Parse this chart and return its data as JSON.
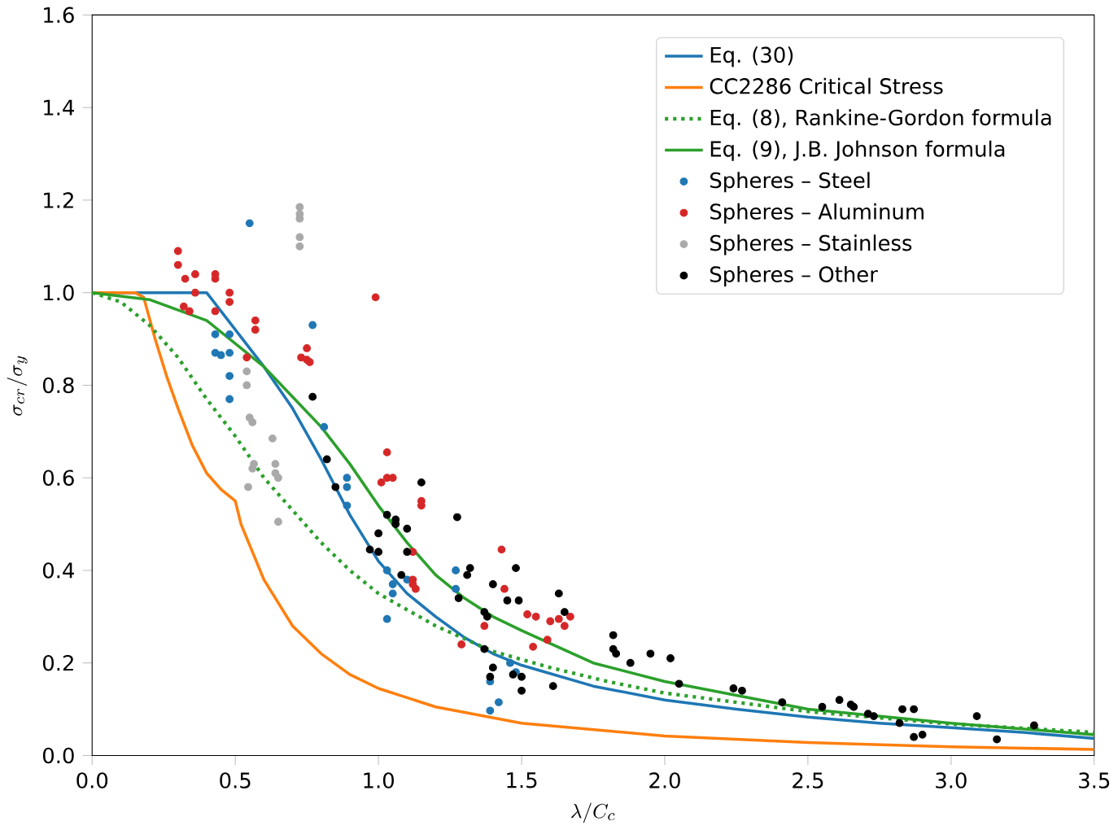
{
  "chart_data": {
    "type": "scatter",
    "xlabel": "\\lambda/C_c",
    "ylabel": "\\sigma_{cr}/\\sigma_y",
    "xlim": [
      0,
      3.5
    ],
    "ylim": [
      0,
      1.6
    ],
    "xticks": [
      {
        "value": 0,
        "label": "0.0"
      },
      {
        "value": 0.5,
        "label": "0.5"
      },
      {
        "value": 1,
        "label": "1.0"
      },
      {
        "value": 1.5,
        "label": "1.5"
      },
      {
        "value": 2,
        "label": "2.0"
      },
      {
        "value": 2.5,
        "label": "2.5"
      },
      {
        "value": 3,
        "label": "3.0"
      },
      {
        "value": 3.5,
        "label": "3.5"
      }
    ],
    "yticks": [
      {
        "value": 0,
        "label": "0.0"
      },
      {
        "value": 0.2,
        "label": "0.2"
      },
      {
        "value": 0.4,
        "label": "0.4"
      },
      {
        "value": 0.6,
        "label": "0.6"
      },
      {
        "value": 0.8,
        "label": "0.8"
      },
      {
        "value": 1,
        "label": "1.0"
      },
      {
        "value": 1.2,
        "label": "1.2"
      },
      {
        "value": 1.4,
        "label": "1.4"
      },
      {
        "value": 1.6,
        "label": "1.6"
      }
    ],
    "grid": false,
    "legend": "top right",
    "series": [
      {
        "name": "Eq. (30)",
        "type": "line",
        "line_style": "solid",
        "marker": "none",
        "color": "#1f77b4",
        "x": [
          0,
          0.4,
          0.5,
          0.6,
          0.7,
          0.8,
          0.9,
          1.0,
          1.1,
          1.2,
          1.3,
          1.4,
          1.5,
          1.75,
          2.0,
          2.25,
          2.5,
          2.75,
          3.0,
          3.25,
          3.5
        ],
        "values": [
          1,
          1,
          0.92,
          0.84,
          0.75,
          0.64,
          0.52,
          0.42,
          0.35,
          0.3,
          0.255,
          0.22,
          0.195,
          0.15,
          0.12,
          0.1,
          0.083,
          0.07,
          0.06,
          0.05,
          0.037
        ]
      },
      {
        "name": "CC2286 Critical Stress",
        "type": "line",
        "line_style": "solid",
        "marker": "none",
        "color": "#ff7f0e",
        "x": [
          0,
          0.15,
          0.18,
          0.22,
          0.26,
          0.3,
          0.35,
          0.4,
          0.45,
          0.5,
          0.52,
          0.6,
          0.7,
          0.8,
          0.9,
          1.0,
          1.2,
          1.5,
          2.0,
          2.5,
          3.0,
          3.5
        ],
        "values": [
          1,
          1,
          0.99,
          0.9,
          0.82,
          0.75,
          0.67,
          0.61,
          0.575,
          0.55,
          0.5,
          0.38,
          0.28,
          0.22,
          0.175,
          0.145,
          0.105,
          0.07,
          0.042,
          0.028,
          0.019,
          0.013
        ]
      },
      {
        "name": "Eq. (8), Rankine-Gordon formula",
        "type": "line",
        "line_style": "dotted",
        "marker": "none",
        "color": "#2ca02c",
        "x": [
          0,
          0.1,
          0.2,
          0.3,
          0.4,
          0.5,
          0.6,
          0.7,
          0.8,
          0.9,
          1.0,
          1.2,
          1.4,
          1.6,
          1.8,
          2.0,
          2.5,
          3.0,
          3.5
        ],
        "values": [
          1,
          0.98,
          0.93,
          0.86,
          0.77,
          0.69,
          0.6,
          0.53,
          0.46,
          0.4,
          0.35,
          0.28,
          0.225,
          0.19,
          0.16,
          0.135,
          0.095,
          0.068,
          0.05
        ]
      },
      {
        "name": "Eq. (9), J.B. Johnson formula",
        "type": "line",
        "line_style": "solid",
        "marker": "none",
        "color": "#2ca02c",
        "x": [
          0,
          0.2,
          0.4,
          0.6,
          0.8,
          0.9,
          1.0,
          1.1,
          1.2,
          1.3,
          1.4,
          1.5,
          1.75,
          2.0,
          2.5,
          3.0,
          3.5
        ],
        "values": [
          1,
          0.985,
          0.94,
          0.84,
          0.71,
          0.63,
          0.54,
          0.46,
          0.39,
          0.34,
          0.3,
          0.27,
          0.2,
          0.16,
          0.1,
          0.07,
          0.045
        ]
      },
      {
        "name": "Spheres – Steel",
        "marker": "circle",
        "color": "#1f77b4",
        "x": [
          0.55,
          0.77,
          0.43,
          0.48,
          0.43,
          0.45,
          0.48,
          0.48,
          0.48,
          0.81,
          0.89,
          0.89,
          0.89,
          1.03,
          1.05,
          1.05,
          1.03,
          1.1,
          1.27,
          1.27,
          1.39,
          1.42,
          1.39,
          1.46,
          1.48
        ],
        "values": [
          1.15,
          0.93,
          0.91,
          0.91,
          0.87,
          0.865,
          0.87,
          0.82,
          0.77,
          0.71,
          0.6,
          0.58,
          0.54,
          0.4,
          0.37,
          0.35,
          0.295,
          0.38,
          0.4,
          0.36,
          0.16,
          0.115,
          0.097,
          0.2,
          0.18
        ]
      },
      {
        "name": "Spheres – Aluminum",
        "marker": "circle",
        "color": "#d62728",
        "x": [
          0.3,
          0.3,
          0.325,
          0.36,
          0.43,
          0.43,
          0.36,
          0.32,
          0.34,
          0.48,
          0.48,
          0.43,
          0.57,
          0.57,
          0.54,
          0.99,
          0.75,
          0.73,
          0.75,
          0.76,
          1.03,
          1.01,
          1.03,
          1.05,
          1.15,
          1.15,
          1.12,
          1.12,
          1.12,
          1.13,
          1.43,
          1.44,
          1.52,
          1.55,
          1.6,
          1.63,
          1.65,
          1.67,
          1.59,
          1.54,
          1.29,
          1.37
        ],
        "values": [
          1.09,
          1.06,
          1.03,
          1.04,
          1.04,
          1.03,
          1.0,
          0.97,
          0.96,
          1.0,
          0.98,
          0.96,
          0.94,
          0.92,
          0.86,
          0.99,
          0.88,
          0.86,
          0.855,
          0.85,
          0.655,
          0.59,
          0.6,
          0.6,
          0.55,
          0.54,
          0.44,
          0.38,
          0.37,
          0.36,
          0.445,
          0.36,
          0.305,
          0.3,
          0.29,
          0.295,
          0.28,
          0.3,
          0.25,
          0.235,
          0.24,
          0.28
        ]
      },
      {
        "name": "Spheres – Stainless",
        "marker": "circle",
        "color": "#a9a9a9",
        "x": [
          0.725,
          0.725,
          0.725,
          0.725,
          0.725,
          0.54,
          0.54,
          0.55,
          0.56,
          0.63,
          0.565,
          0.56,
          0.64,
          0.64,
          0.65,
          0.545,
          0.65
        ],
        "values": [
          1.185,
          1.17,
          1.16,
          1.12,
          1.1,
          0.83,
          0.8,
          0.73,
          0.72,
          0.685,
          0.63,
          0.62,
          0.63,
          0.61,
          0.6,
          0.58,
          0.505
        ]
      },
      {
        "name": "Spheres – Other",
        "marker": "circle",
        "color": "#000000",
        "x": [
          0.77,
          0.82,
          0.85,
          1.15,
          1.03,
          1.06,
          1.0,
          0.97,
          1.0,
          1.1,
          1.06,
          1.1,
          1.08,
          1.275,
          1.31,
          1.32,
          1.4,
          1.45,
          1.49,
          1.48,
          1.63,
          1.65,
          1.28,
          1.37,
          1.38,
          1.37,
          1.39,
          1.4,
          1.47,
          1.5,
          1.5,
          1.61,
          1.82,
          1.82,
          1.83,
          1.88,
          1.95,
          2.02,
          2.05,
          2.24,
          2.27,
          2.41,
          2.55,
          2.61,
          2.65,
          2.66,
          2.71,
          2.73,
          2.82,
          2.83,
          2.87,
          2.87,
          2.9,
          3.09,
          3.16,
          3.29
        ],
        "values": [
          0.775,
          0.64,
          0.58,
          0.59,
          0.52,
          0.51,
          0.48,
          0.445,
          0.44,
          0.44,
          0.5,
          0.49,
          0.39,
          0.515,
          0.39,
          0.405,
          0.37,
          0.335,
          0.335,
          0.405,
          0.35,
          0.31,
          0.34,
          0.31,
          0.3,
          0.23,
          0.17,
          0.19,
          0.175,
          0.17,
          0.14,
          0.15,
          0.26,
          0.23,
          0.22,
          0.2,
          0.22,
          0.21,
          0.155,
          0.145,
          0.14,
          0.115,
          0.105,
          0.12,
          0.11,
          0.105,
          0.09,
          0.085,
          0.07,
          0.1,
          0.1,
          0.04,
          0.045,
          0.085,
          0.035,
          0.065
        ]
      }
    ]
  }
}
